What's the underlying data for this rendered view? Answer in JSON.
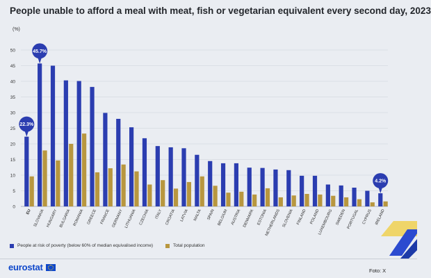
{
  "title": "People unable to afford a meal with meat, fish or vegetarian equivalent every second day, 2023",
  "unit": "(%)",
  "legend": {
    "poverty": "People at risk of poverty (below 60% of median equivalised income)",
    "total": "Total population"
  },
  "footer": {
    "logo": "eurostat",
    "credit": "Foto: X"
  },
  "colors": {
    "poverty": "#2b3db0",
    "total": "#b8973f",
    "callout": "#2b3db0",
    "background": "#eaedf2",
    "grid": "#d6dae1"
  },
  "chart_data": {
    "type": "bar",
    "title": "People unable to afford a meal with meat, fish or vegetarian equivalent every second day, 2023",
    "ylabel": "(%)",
    "ylim": [
      0,
      50
    ],
    "yticks": [
      0,
      5,
      10,
      15,
      20,
      25,
      30,
      35,
      40,
      45,
      50
    ],
    "grid": true,
    "legend_position": "bottom-left",
    "categories": [
      "EU",
      "SLOVAKIA",
      "HUNGARY",
      "BULGARIA",
      "ROMANIA",
      "GREECE",
      "FRANCE",
      "GERMANY",
      "LITHUANIA",
      "CZECHIA",
      "ITALY",
      "CROATIA",
      "LATVIA",
      "MALTA",
      "SPAIN",
      "BELGIUM",
      "AUSTRIA",
      "DENMARK",
      "ESTONIA",
      "NETHERLANDS",
      "SLOVENIA",
      "FINLAND",
      "POLAND",
      "LUXEMBOURG",
      "SWEDEN",
      "PORTUGAL",
      "CYPRUS",
      "IRELAND"
    ],
    "bold_categories": [
      "EU"
    ],
    "series": [
      {
        "name": "People at risk of poverty (below 60% of median equivalised income)",
        "values": [
          22.3,
          45.7,
          45.0,
          40.3,
          40.1,
          38.2,
          29.9,
          28.0,
          25.3,
          21.8,
          19.3,
          18.9,
          18.6,
          16.5,
          14.5,
          13.8,
          13.8,
          12.4,
          12.3,
          11.8,
          11.6,
          9.8,
          9.8,
          7.0,
          6.7,
          6.0,
          5.0,
          4.2
        ]
      },
      {
        "name": "Total population",
        "values": [
          9.6,
          17.9,
          14.7,
          20.0,
          23.3,
          10.9,
          12.2,
          13.4,
          11.2,
          7.0,
          8.4,
          5.7,
          7.8,
          9.6,
          6.6,
          4.4,
          4.7,
          3.8,
          5.8,
          2.9,
          3.5,
          4.0,
          3.8,
          3.4,
          2.9,
          2.3,
          1.3,
          1.6
        ]
      }
    ],
    "annotations": [
      {
        "category": "EU",
        "label": "22.3%"
      },
      {
        "category": "SLOVAKIA",
        "label": "45.7%"
      },
      {
        "category": "IRELAND",
        "label": "4.2%"
      }
    ]
  }
}
